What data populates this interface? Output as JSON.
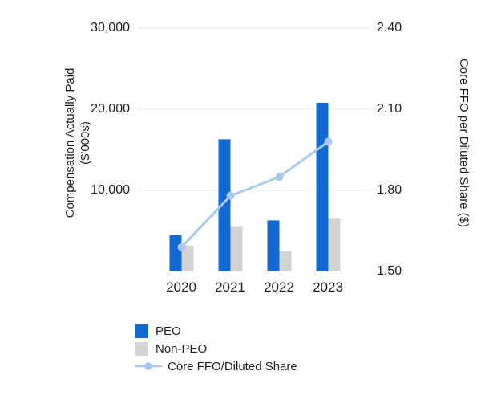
{
  "chart_data": {
    "type": "combo-bar-line",
    "categories": [
      "2020",
      "2021",
      "2022",
      "2023"
    ],
    "bar_series": [
      {
        "name": "PEO",
        "axis": "left",
        "color": "#1269d1",
        "values": [
          4500,
          16300,
          6300,
          20800
        ]
      },
      {
        "name": "Non-PEO",
        "axis": "left",
        "color": "#d3d3d3",
        "values": [
          3200,
          5500,
          2500,
          6500
        ]
      }
    ],
    "line_series": {
      "name": "Core FFO/Diluted Share",
      "axis": "right",
      "color": "#a8c9eb",
      "values": [
        1.59,
        1.78,
        1.85,
        1.98
      ]
    },
    "left_axis": {
      "title_line1": "Compensation Actually Paid",
      "title_line2": "($'000s)",
      "min": 0,
      "max": 30000,
      "gridline_values": [
        10000,
        20000,
        30000
      ],
      "tick_labels_top_down": [
        "30,000",
        "20,000",
        "10,000"
      ]
    },
    "right_axis": {
      "title": "Core FFO per Diluted Share ($)",
      "min": 1.5,
      "max": 2.4,
      "tick_labels_top_down": [
        "2.40",
        "2.10",
        "1.80",
        "1.50"
      ]
    },
    "grid": true,
    "grid_color": "#e4e4e4",
    "legend_position": "bottom-left",
    "background": "#ffffff",
    "text_color": "#1f1f1f"
  }
}
